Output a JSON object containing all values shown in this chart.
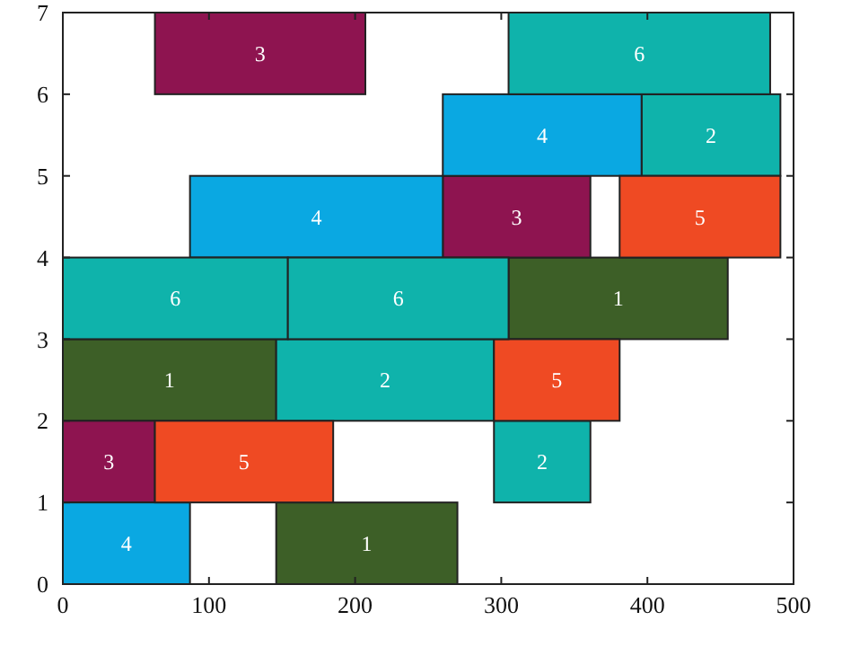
{
  "chart_data": {
    "type": "bar",
    "orientation": "horizontal",
    "xlim": [
      0,
      500
    ],
    "xticks": [
      0,
      100,
      200,
      300,
      400,
      500
    ],
    "ylim": [
      0,
      7
    ],
    "yticks": [
      0,
      1,
      2,
      3,
      4,
      5,
      6,
      7
    ],
    "series": [
      {
        "name": "1",
        "color": "#3d5f27",
        "x": [
          0.5,
          2.5,
          3.5
        ],
        "base": [
          146,
          0,
          305
        ],
        "values": [
          124,
          146,
          150
        ]
      },
      {
        "name": "2",
        "color": "#0fb3ab",
        "x": [
          1.5,
          2.5,
          5.5
        ],
        "base": [
          295,
          146,
          396
        ],
        "values": [
          66,
          149,
          95
        ]
      },
      {
        "name": "3",
        "color": "#8e1450",
        "x": [
          1.5,
          4.5,
          6.5
        ],
        "base": [
          0,
          260,
          63
        ],
        "values": [
          63,
          101,
          144
        ]
      },
      {
        "name": "4",
        "color": "#0aa8e2",
        "x": [
          0.5,
          4.5,
          5.5
        ],
        "base": [
          0,
          87,
          260
        ],
        "values": [
          87,
          173,
          136
        ]
      },
      {
        "name": "5",
        "color": "#ef4a23",
        "x": [
          1.5,
          2.5,
          4.5
        ],
        "base": [
          63,
          295,
          381
        ],
        "values": [
          122,
          86,
          110
        ]
      },
      {
        "name": "6",
        "color": "#0fb3ab",
        "x": [
          3.5,
          6.5
        ],
        "base": [
          0,
          305
        ],
        "values": [
          154,
          179
        ]
      },
      {
        "name": "6",
        "color": "#0fb3ab",
        "x": [
          3.5
        ],
        "base": [
          154
        ],
        "values": [
          151
        ]
      }
    ]
  }
}
